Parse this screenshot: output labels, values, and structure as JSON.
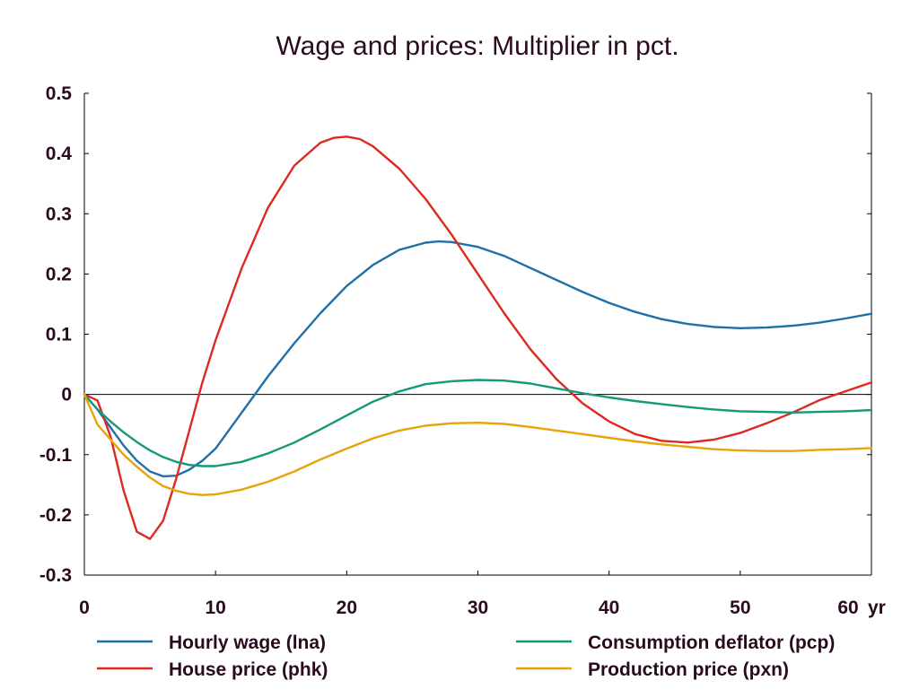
{
  "chart_data": {
    "type": "line",
    "title": "Wage and prices: Multiplier in pct.",
    "xlabel": "",
    "ylabel": "",
    "x_unit_label": "yr",
    "xlim": [
      0,
      60
    ],
    "ylim": [
      -0.3,
      0.5
    ],
    "x_ticks": [
      0,
      10,
      20,
      30,
      40,
      50,
      60
    ],
    "y_ticks": [
      -0.3,
      -0.2,
      -0.1,
      0,
      0.1,
      0.2,
      0.3,
      0.4,
      0.5
    ],
    "grid": false,
    "zero_line": true,
    "legend_position": "bottom",
    "series": [
      {
        "name": "Hourly wage (lna)",
        "color": "#1f6fa8",
        "x": [
          0,
          1,
          2,
          3,
          4,
          5,
          6,
          7,
          8,
          9,
          10,
          12,
          14,
          16,
          18,
          20,
          22,
          24,
          26,
          27,
          28,
          30,
          32,
          34,
          36,
          38,
          40,
          42,
          44,
          46,
          48,
          50,
          52,
          54,
          56,
          58,
          60
        ],
        "y": [
          0,
          -0.025,
          -0.055,
          -0.085,
          -0.11,
          -0.128,
          -0.136,
          -0.135,
          -0.125,
          -0.11,
          -0.09,
          -0.03,
          0.03,
          0.085,
          0.135,
          0.18,
          0.215,
          0.24,
          0.252,
          0.254,
          0.253,
          0.245,
          0.23,
          0.21,
          0.19,
          0.17,
          0.152,
          0.137,
          0.125,
          0.117,
          0.112,
          0.11,
          0.111,
          0.114,
          0.119,
          0.126,
          0.134
        ]
      },
      {
        "name": "House price (phk)",
        "color": "#dc2a1e",
        "x": [
          0,
          1,
          2,
          3,
          4,
          5,
          6,
          7,
          8,
          9,
          10,
          12,
          14,
          16,
          18,
          19,
          20,
          21,
          22,
          24,
          26,
          28,
          30,
          32,
          34,
          36,
          38,
          40,
          42,
          44,
          46,
          48,
          50,
          52,
          54,
          56,
          58,
          60
        ],
        "y": [
          0,
          -0.01,
          -0.07,
          -0.16,
          -0.228,
          -0.24,
          -0.21,
          -0.14,
          -0.06,
          0.02,
          0.09,
          0.21,
          0.31,
          0.38,
          0.418,
          0.426,
          0.428,
          0.424,
          0.412,
          0.375,
          0.325,
          0.265,
          0.2,
          0.135,
          0.075,
          0.025,
          -0.015,
          -0.045,
          -0.066,
          -0.077,
          -0.08,
          -0.075,
          -0.064,
          -0.048,
          -0.03,
          -0.01,
          0.005,
          0.02
        ]
      },
      {
        "name": "Consumption deflator (pcp)",
        "color": "#16987a",
        "x": [
          0,
          1,
          2,
          3,
          4,
          5,
          6,
          7,
          8,
          9,
          10,
          12,
          14,
          16,
          18,
          20,
          22,
          24,
          26,
          28,
          30,
          32,
          34,
          36,
          38,
          40,
          42,
          44,
          46,
          48,
          50,
          52,
          54,
          56,
          58,
          60
        ],
        "y": [
          0,
          -0.025,
          -0.045,
          -0.063,
          -0.079,
          -0.093,
          -0.104,
          -0.112,
          -0.117,
          -0.119,
          -0.119,
          -0.112,
          -0.098,
          -0.08,
          -0.058,
          -0.035,
          -0.012,
          0.005,
          0.017,
          0.022,
          0.024,
          0.023,
          0.018,
          0.01,
          0.002,
          -0.005,
          -0.011,
          -0.016,
          -0.021,
          -0.025,
          -0.028,
          -0.029,
          -0.03,
          -0.029,
          -0.028,
          -0.026
        ]
      },
      {
        "name": "Production price (pxn)",
        "color": "#e8a30a",
        "x": [
          0,
          1,
          2,
          3,
          4,
          5,
          6,
          7,
          8,
          9,
          10,
          12,
          14,
          16,
          18,
          20,
          22,
          24,
          26,
          28,
          30,
          32,
          34,
          36,
          38,
          40,
          42,
          44,
          46,
          48,
          50,
          52,
          54,
          56,
          58,
          60
        ],
        "y": [
          0,
          -0.05,
          -0.075,
          -0.1,
          -0.12,
          -0.138,
          -0.152,
          -0.16,
          -0.165,
          -0.167,
          -0.166,
          -0.158,
          -0.145,
          -0.128,
          -0.108,
          -0.09,
          -0.073,
          -0.06,
          -0.052,
          -0.048,
          -0.047,
          -0.049,
          -0.054,
          -0.06,
          -0.066,
          -0.072,
          -0.078,
          -0.083,
          -0.087,
          -0.091,
          -0.093,
          -0.094,
          -0.094,
          -0.092,
          -0.091,
          -0.089
        ]
      }
    ]
  }
}
